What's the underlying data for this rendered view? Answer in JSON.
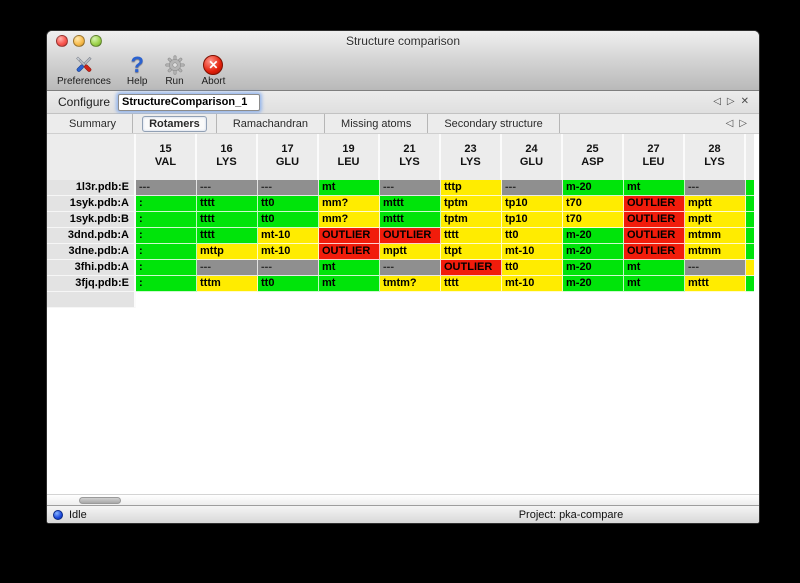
{
  "window": {
    "title": "Structure comparison",
    "toolbar": [
      {
        "label": "Preferences"
      },
      {
        "label": "Help"
      },
      {
        "label": "Run"
      },
      {
        "label": "Abort"
      }
    ],
    "configure": {
      "label": "Configure",
      "value": "StructureComparison_1"
    },
    "tabs": [
      {
        "label": "Summary",
        "active": false
      },
      {
        "label": "Rotamers",
        "active": true
      },
      {
        "label": "Ramachandran",
        "active": false
      },
      {
        "label": "Missing atoms",
        "active": false
      },
      {
        "label": "Secondary structure",
        "active": false
      }
    ],
    "nav_icons": {
      "prev": "◁",
      "next": "▷",
      "close": "✕"
    },
    "statusbar": {
      "status": "Idle",
      "project": "Project: pka-compare"
    }
  },
  "table": {
    "colors": {
      "green": "#00e40a",
      "yellow": "#ffec00",
      "red": "#f11c0b",
      "gray": "#8f8f8f"
    },
    "columns": [
      {
        "num": "15",
        "res": "VAL"
      },
      {
        "num": "16",
        "res": "LYS"
      },
      {
        "num": "17",
        "res": "GLU"
      },
      {
        "num": "19",
        "res": "LEU"
      },
      {
        "num": "21",
        "res": "LYS"
      },
      {
        "num": "23",
        "res": "LYS"
      },
      {
        "num": "24",
        "res": "GLU"
      },
      {
        "num": "25",
        "res": "ASP"
      },
      {
        "num": "27",
        "res": "LEU"
      },
      {
        "num": "28",
        "res": "LYS"
      }
    ],
    "rows": [
      {
        "label": "1l3r.pdb:E",
        "sliver": "green",
        "cells": [
          {
            "t": "---",
            "c": "gray"
          },
          {
            "t": "---",
            "c": "gray"
          },
          {
            "t": "---",
            "c": "gray"
          },
          {
            "t": "mt",
            "c": "green"
          },
          {
            "t": "---",
            "c": "gray"
          },
          {
            "t": "tttp",
            "c": "yellow"
          },
          {
            "t": "---",
            "c": "gray"
          },
          {
            "t": "m-20",
            "c": "green"
          },
          {
            "t": "mt",
            "c": "green"
          },
          {
            "t": "---",
            "c": "gray"
          }
        ]
      },
      {
        "label": "1syk.pdb:A",
        "sliver": "green",
        "cells": [
          {
            "t": ":",
            "c": "green"
          },
          {
            "t": "tttt",
            "c": "green"
          },
          {
            "t": "tt0",
            "c": "green"
          },
          {
            "t": "mm?",
            "c": "yellow"
          },
          {
            "t": "mttt",
            "c": "green"
          },
          {
            "t": "tptm",
            "c": "yellow"
          },
          {
            "t": "tp10",
            "c": "yellow"
          },
          {
            "t": "t70",
            "c": "yellow"
          },
          {
            "t": "OUTLIER",
            "c": "red"
          },
          {
            "t": "mptt",
            "c": "yellow"
          }
        ]
      },
      {
        "label": "1syk.pdb:B",
        "sliver": "green",
        "cells": [
          {
            "t": ":",
            "c": "green"
          },
          {
            "t": "tttt",
            "c": "green"
          },
          {
            "t": "tt0",
            "c": "green"
          },
          {
            "t": "mm?",
            "c": "yellow"
          },
          {
            "t": "mttt",
            "c": "green"
          },
          {
            "t": "tptm",
            "c": "yellow"
          },
          {
            "t": "tp10",
            "c": "yellow"
          },
          {
            "t": "t70",
            "c": "yellow"
          },
          {
            "t": "OUTLIER",
            "c": "red"
          },
          {
            "t": "mptt",
            "c": "yellow"
          }
        ]
      },
      {
        "label": "3dnd.pdb:A",
        "sliver": "green",
        "cells": [
          {
            "t": ":",
            "c": "green"
          },
          {
            "t": "tttt",
            "c": "green"
          },
          {
            "t": "mt-10",
            "c": "yellow"
          },
          {
            "t": "OUTLIER",
            "c": "red"
          },
          {
            "t": "OUTLIER",
            "c": "red"
          },
          {
            "t": "tttt",
            "c": "yellow"
          },
          {
            "t": "tt0",
            "c": "yellow"
          },
          {
            "t": "m-20",
            "c": "green"
          },
          {
            "t": "OUTLIER",
            "c": "red"
          },
          {
            "t": "mtmm",
            "c": "yellow"
          }
        ]
      },
      {
        "label": "3dne.pdb:A",
        "sliver": "green",
        "cells": [
          {
            "t": ":",
            "c": "green"
          },
          {
            "t": "mttp",
            "c": "yellow"
          },
          {
            "t": "mt-10",
            "c": "yellow"
          },
          {
            "t": "OUTLIER",
            "c": "red"
          },
          {
            "t": "mptt",
            "c": "yellow"
          },
          {
            "t": "ttpt",
            "c": "yellow"
          },
          {
            "t": "mt-10",
            "c": "yellow"
          },
          {
            "t": "m-20",
            "c": "green"
          },
          {
            "t": "OUTLIER",
            "c": "red"
          },
          {
            "t": "mtmm",
            "c": "yellow"
          }
        ]
      },
      {
        "label": "3fhi.pdb:A",
        "sliver": "yellow",
        "cells": [
          {
            "t": ":",
            "c": "green"
          },
          {
            "t": "---",
            "c": "gray"
          },
          {
            "t": "---",
            "c": "gray"
          },
          {
            "t": "mt",
            "c": "green"
          },
          {
            "t": "---",
            "c": "gray"
          },
          {
            "t": "OUTLIER",
            "c": "red"
          },
          {
            "t": "tt0",
            "c": "yellow"
          },
          {
            "t": "m-20",
            "c": "green"
          },
          {
            "t": "mt",
            "c": "green"
          },
          {
            "t": "---",
            "c": "gray"
          }
        ]
      },
      {
        "label": "3fjq.pdb:E",
        "sliver": "green",
        "cells": [
          {
            "t": ":",
            "c": "green"
          },
          {
            "t": "tttm",
            "c": "yellow"
          },
          {
            "t": "tt0",
            "c": "green"
          },
          {
            "t": "mt",
            "c": "green"
          },
          {
            "t": "tmtm?",
            "c": "yellow"
          },
          {
            "t": "tttt",
            "c": "yellow"
          },
          {
            "t": "mt-10",
            "c": "yellow"
          },
          {
            "t": "m-20",
            "c": "green"
          },
          {
            "t": "mt",
            "c": "green"
          },
          {
            "t": "mttt",
            "c": "yellow"
          }
        ]
      }
    ]
  }
}
